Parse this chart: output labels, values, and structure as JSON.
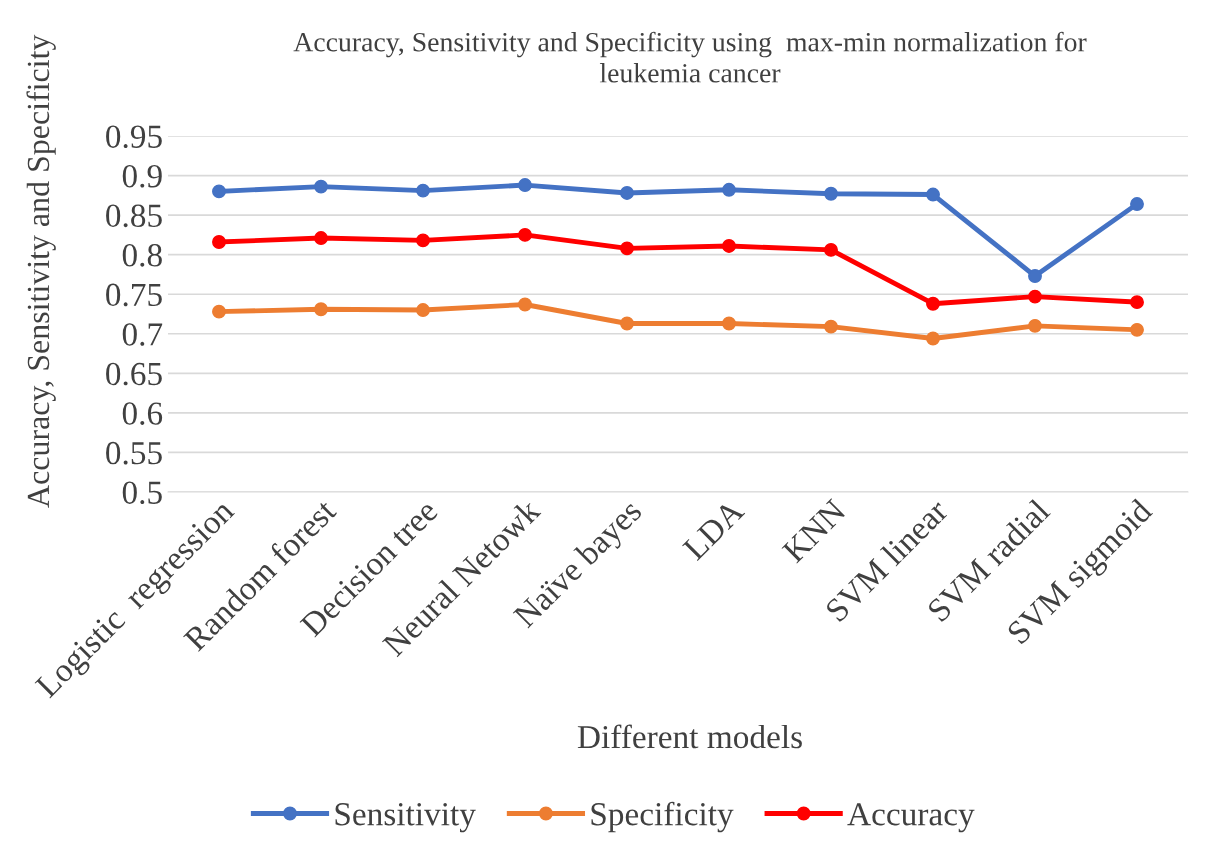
{
  "chart_data": {
    "type": "line",
    "title": "Accuracy, Sensitivity and Specificity using  max-min normalization for\nleukemia cancer",
    "xlabel": "Different models",
    "ylabel": "Accuracy, Sensitivity and Specificity",
    "categories": [
      "Logistic  regression",
      "Random forest",
      "Decision tree",
      "Neural Netowk",
      "Naïve bayes",
      "LDA",
      "KNN",
      "SVM linear",
      "SVM radial",
      "SVM sigmoid"
    ],
    "series": [
      {
        "name": "Sensitivity",
        "color": "#4472c4",
        "values": [
          0.88,
          0.886,
          0.881,
          0.888,
          0.878,
          0.882,
          0.877,
          0.876,
          0.773,
          0.864
        ]
      },
      {
        "name": "Specificity",
        "color": "#ed7d31",
        "values": [
          0.728,
          0.731,
          0.73,
          0.737,
          0.713,
          0.713,
          0.709,
          0.694,
          0.71,
          0.705
        ]
      },
      {
        "name": "Accuracy",
        "color": "#ff0000",
        "values": [
          0.816,
          0.821,
          0.818,
          0.825,
          0.808,
          0.811,
          0.806,
          0.738,
          0.747,
          0.74
        ]
      }
    ],
    "ylim": [
      0.5,
      0.95
    ],
    "yticks": [
      0.5,
      0.55,
      0.6,
      0.65,
      0.7,
      0.75,
      0.8,
      0.85,
      0.9,
      0.95
    ],
    "grid": "y",
    "legend": "bottom",
    "marker": "circle",
    "line_style": "solid"
  }
}
